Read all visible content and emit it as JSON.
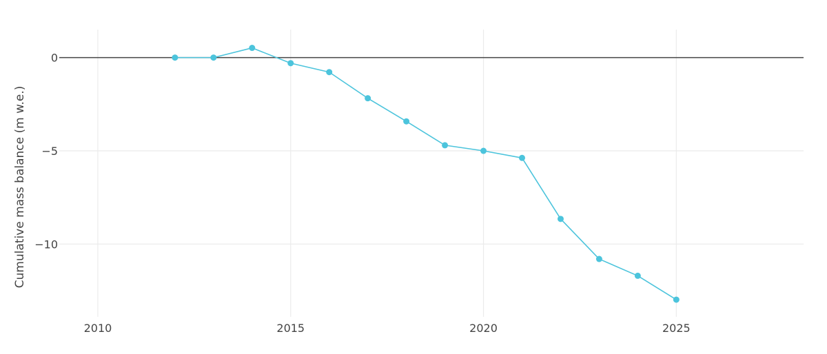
{
  "chart_data": {
    "type": "line",
    "title": "",
    "xlabel": "",
    "ylabel": "Cumulative mass balance (m w.e.)",
    "xlim": [
      2009,
      2028.3
    ],
    "ylim": [
      -13.9,
      1.5
    ],
    "x_ticks": [
      2010,
      2015,
      2020,
      2025
    ],
    "y_ticks": [
      0,
      -5,
      -10
    ],
    "y_tick_labels": [
      "0",
      "−5",
      "−10"
    ],
    "grid": true,
    "zero_line": true,
    "legend": "none",
    "series": [
      {
        "color": "#4cc4dc",
        "x": [
          2012,
          2013,
          2014,
          2015,
          2016,
          2017,
          2018,
          2019,
          2020,
          2021,
          2022,
          2023,
          2024,
          2025
        ],
        "y": [
          0.0,
          0.0,
          0.52,
          -0.3,
          -0.78,
          -2.18,
          -3.42,
          -4.7,
          -5.0,
          -5.38,
          -8.65,
          -10.8,
          -11.7,
          -12.98
        ]
      }
    ]
  },
  "colors": {
    "grid": "#ebebeb",
    "zero_line": "#444444",
    "text": "#444444"
  }
}
